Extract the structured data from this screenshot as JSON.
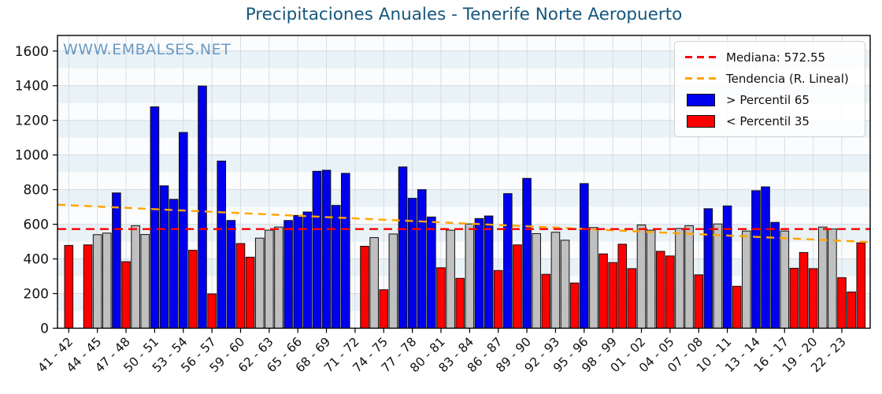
{
  "watermark": {
    "text": "WWW.EMBALSES.NET"
  },
  "chart_data": {
    "type": "bar",
    "title": "Precipitaciones Anuales - Tenerife Norte Aeropuerto",
    "xlabel": "",
    "ylabel": "",
    "ylim": [
      0,
      1690
    ],
    "grid": true,
    "y_ticks": [
      0,
      200,
      400,
      600,
      800,
      1000,
      1200,
      1400,
      1600
    ],
    "x_tick_labels": [
      "41 - 42",
      "44 - 45",
      "47 - 48",
      "50 - 51",
      "53 - 54",
      "56 - 57",
      "59 - 60",
      "62 - 63",
      "65 - 66",
      "68 - 69",
      "71 - 72",
      "74 - 75",
      "77 - 78",
      "80 - 81",
      "83 - 84",
      "86 - 87",
      "89 - 90",
      "92 - 93",
      "95 - 96",
      "98 - 99",
      "01 - 02",
      "04 - 05",
      "07 - 08",
      "10 - 11",
      "13 - 14",
      "16 - 17",
      "19 - 20",
      "22 - 23"
    ],
    "x_tick_step": 3,
    "median": 572.55,
    "trend": {
      "start": 713,
      "end": 497
    },
    "legend": {
      "median": "Mediana: 572.55",
      "trend": "Tendencia (R. Lineal)",
      "above": "> Percentil 65",
      "below": "< Percentil 35"
    },
    "legend_position": "upper right",
    "colors": {
      "above": "#0000ee",
      "below": "#ff0000",
      "normal": "#c0c0c0",
      "median": "#ff0000",
      "trend": "#ffa500",
      "band": "#e9f2f7",
      "plot_bg": "#fbfcfd",
      "gridline": "#d8dce0",
      "title": "#15567d"
    },
    "bars": [
      {
        "s": "41-42",
        "v": 478,
        "c": "below"
      },
      {
        "s": "42-43",
        "v": null,
        "c": null
      },
      {
        "s": "43-44",
        "v": 481,
        "c": "below"
      },
      {
        "s": "44-45",
        "v": 540,
        "c": "normal"
      },
      {
        "s": "45-46",
        "v": 549,
        "c": "normal"
      },
      {
        "s": "46-47",
        "v": 781,
        "c": "above"
      },
      {
        "s": "47-48",
        "v": 384,
        "c": "below"
      },
      {
        "s": "48-49",
        "v": 592,
        "c": "normal"
      },
      {
        "s": "49-50",
        "v": 541,
        "c": "normal"
      },
      {
        "s": "50-51",
        "v": 1278,
        "c": "above"
      },
      {
        "s": "51-52",
        "v": 822,
        "c": "above"
      },
      {
        "s": "52-53",
        "v": 744,
        "c": "above"
      },
      {
        "s": "53-54",
        "v": 1130,
        "c": "above"
      },
      {
        "s": "54-55",
        "v": 450,
        "c": "below"
      },
      {
        "s": "55-56",
        "v": 1398,
        "c": "above"
      },
      {
        "s": "56-57",
        "v": 198,
        "c": "below"
      },
      {
        "s": "57-58",
        "v": 965,
        "c": "above"
      },
      {
        "s": "58-59",
        "v": 622,
        "c": "above"
      },
      {
        "s": "59-60",
        "v": 489,
        "c": "below"
      },
      {
        "s": "60-61",
        "v": 410,
        "c": "below"
      },
      {
        "s": "61-62",
        "v": 520,
        "c": "normal"
      },
      {
        "s": "62-63",
        "v": 566,
        "c": "normal"
      },
      {
        "s": "63-64",
        "v": 584,
        "c": "normal"
      },
      {
        "s": "64-65",
        "v": 622,
        "c": "above"
      },
      {
        "s": "65-66",
        "v": 651,
        "c": "above"
      },
      {
        "s": "66-67",
        "v": 671,
        "c": "above"
      },
      {
        "s": "67-68",
        "v": 906,
        "c": "above"
      },
      {
        "s": "68-69",
        "v": 912,
        "c": "above"
      },
      {
        "s": "69-70",
        "v": 709,
        "c": "above"
      },
      {
        "s": "70-71",
        "v": 894,
        "c": "above"
      },
      {
        "s": "71-72",
        "v": null,
        "c": null
      },
      {
        "s": "72-73",
        "v": 473,
        "c": "below"
      },
      {
        "s": "73-74",
        "v": 523,
        "c": "normal"
      },
      {
        "s": "74-75",
        "v": 222,
        "c": "below"
      },
      {
        "s": "75-76",
        "v": 544,
        "c": "normal"
      },
      {
        "s": "76-77",
        "v": 931,
        "c": "above"
      },
      {
        "s": "77-78",
        "v": 750,
        "c": "above"
      },
      {
        "s": "78-79",
        "v": 800,
        "c": "above"
      },
      {
        "s": "79-80",
        "v": 642,
        "c": "above"
      },
      {
        "s": "80-81",
        "v": 349,
        "c": "below"
      },
      {
        "s": "81-82",
        "v": 566,
        "c": "normal"
      },
      {
        "s": "82-83",
        "v": 288,
        "c": "below"
      },
      {
        "s": "83-84",
        "v": 602,
        "c": "normal"
      },
      {
        "s": "84-85",
        "v": 633,
        "c": "above"
      },
      {
        "s": "85-86",
        "v": 648,
        "c": "above"
      },
      {
        "s": "86-87",
        "v": 333,
        "c": "below"
      },
      {
        "s": "87-88",
        "v": 777,
        "c": "above"
      },
      {
        "s": "88-89",
        "v": 481,
        "c": "below"
      },
      {
        "s": "89-90",
        "v": 865,
        "c": "above"
      },
      {
        "s": "90-91",
        "v": 546,
        "c": "normal"
      },
      {
        "s": "91-92",
        "v": 311,
        "c": "below"
      },
      {
        "s": "92-93",
        "v": 554,
        "c": "normal"
      },
      {
        "s": "93-94",
        "v": 508,
        "c": "normal"
      },
      {
        "s": "94-95",
        "v": 261,
        "c": "below"
      },
      {
        "s": "95-96",
        "v": 835,
        "c": "above"
      },
      {
        "s": "96-97",
        "v": 581,
        "c": "normal"
      },
      {
        "s": "97-98",
        "v": 429,
        "c": "below"
      },
      {
        "s": "98-99",
        "v": 379,
        "c": "below"
      },
      {
        "s": "99-00",
        "v": 485,
        "c": "below"
      },
      {
        "s": "00-01",
        "v": 344,
        "c": "below"
      },
      {
        "s": "01-02",
        "v": 596,
        "c": "normal"
      },
      {
        "s": "02-03",
        "v": 566,
        "c": "normal"
      },
      {
        "s": "03-04",
        "v": 444,
        "c": "below"
      },
      {
        "s": "04-05",
        "v": 417,
        "c": "below"
      },
      {
        "s": "05-06",
        "v": 576,
        "c": "normal"
      },
      {
        "s": "06-07",
        "v": 592,
        "c": "normal"
      },
      {
        "s": "07-08",
        "v": 308,
        "c": "below"
      },
      {
        "s": "08-09",
        "v": 690,
        "c": "above"
      },
      {
        "s": "09-10",
        "v": 602,
        "c": "normal"
      },
      {
        "s": "10-11",
        "v": 706,
        "c": "above"
      },
      {
        "s": "11-12",
        "v": 242,
        "c": "below"
      },
      {
        "s": "12-13",
        "v": 561,
        "c": "normal"
      },
      {
        "s": "13-14",
        "v": 794,
        "c": "above"
      },
      {
        "s": "14-15",
        "v": 816,
        "c": "above"
      },
      {
        "s": "15-16",
        "v": 611,
        "c": "above"
      },
      {
        "s": "16-17",
        "v": 561,
        "c": "normal"
      },
      {
        "s": "17-18",
        "v": 346,
        "c": "below"
      },
      {
        "s": "18-19",
        "v": 437,
        "c": "below"
      },
      {
        "s": "19-20",
        "v": 344,
        "c": "below"
      },
      {
        "s": "20-21",
        "v": 584,
        "c": "normal"
      },
      {
        "s": "21-22",
        "v": 573,
        "c": "normal"
      },
      {
        "s": "22-23",
        "v": 292,
        "c": "below"
      },
      {
        "s": "23-24",
        "v": 209,
        "c": "below"
      },
      {
        "s": "24-25",
        "v": 493,
        "c": "below"
      }
    ]
  }
}
